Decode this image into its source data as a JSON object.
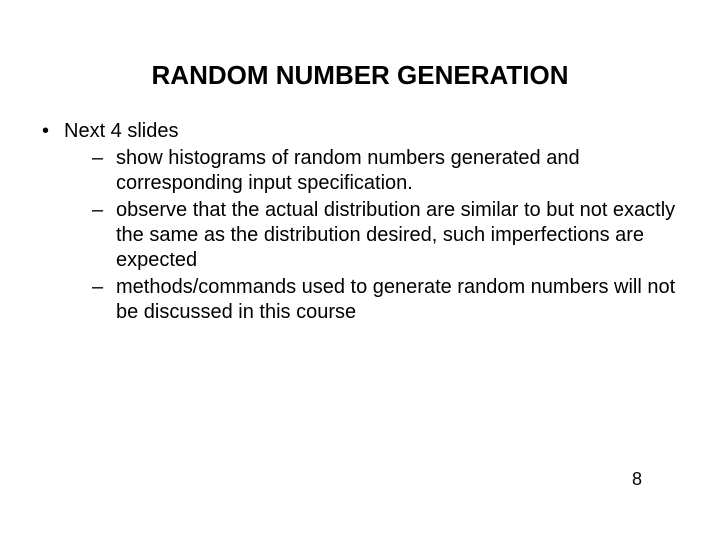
{
  "title": "RANDOM NUMBER GENERATION",
  "bullets": {
    "item1": "Next 4 slides",
    "sub1": "show histograms of random numbers generated and corresponding input specification.",
    "sub2": "observe that the actual distribution are similar to but not exactly the same as the distribution desired, such imperfections are expected",
    "sub3": "methods/commands used to generate random numbers will not be discussed in this course"
  },
  "page_number": "8",
  "colors": {
    "background": "#ffffff",
    "text": "#000000"
  },
  "typography": {
    "title_fontsize": 26,
    "title_fontweight": "bold",
    "body_fontsize": 20,
    "font_family": "Arial"
  }
}
